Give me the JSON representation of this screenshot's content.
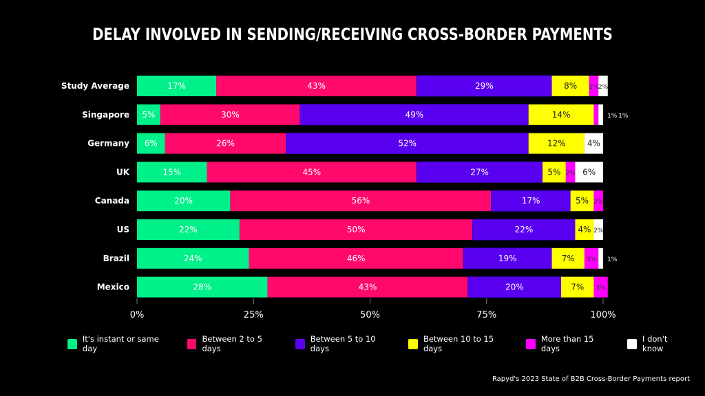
{
  "chart_data": {
    "type": "bar",
    "orientation": "horizontal",
    "stacked": true,
    "title": "DELAY INVOLVED IN SENDING/RECEIVING CROSS-BORDER PAYMENTS",
    "categories": [
      "Study Average",
      "Singapore",
      "Germany",
      "UK",
      "Canada",
      "US",
      "Brazil",
      "Mexico"
    ],
    "series": [
      {
        "name": "It's instant or same day",
        "color": "#00f08a",
        "values": [
          17,
          5,
          6,
          15,
          20,
          22,
          24,
          28
        ]
      },
      {
        "name": "Between 2 to 5 days",
        "color": "#ff0a6c",
        "values": [
          43,
          30,
          26,
          45,
          56,
          50,
          46,
          43
        ]
      },
      {
        "name": "Between 5 to 10 days",
        "color": "#5a00f0",
        "values": [
          29,
          49,
          52,
          27,
          17,
          22,
          19,
          20
        ]
      },
      {
        "name": "Between 10 to 15 days",
        "color": "#ffff00",
        "values": [
          8,
          14,
          12,
          5,
          5,
          4,
          7,
          7
        ]
      },
      {
        "name": "More than 15 days",
        "color": "#ff00ff",
        "values": [
          2,
          1,
          0,
          2,
          2,
          0,
          3,
          3
        ]
      },
      {
        "name": "I don't know",
        "color": "#ffffff",
        "values": [
          2,
          1,
          4,
          6,
          0,
          2,
          1,
          0
        ]
      }
    ],
    "xlim": [
      0,
      100
    ],
    "xticks": [
      "0%",
      "25%",
      "50%",
      "75%",
      "100%"
    ],
    "legend": "bottom",
    "grid": false
  },
  "source": "Rapyd's 2023 State of B2B Cross-Border Payments report"
}
